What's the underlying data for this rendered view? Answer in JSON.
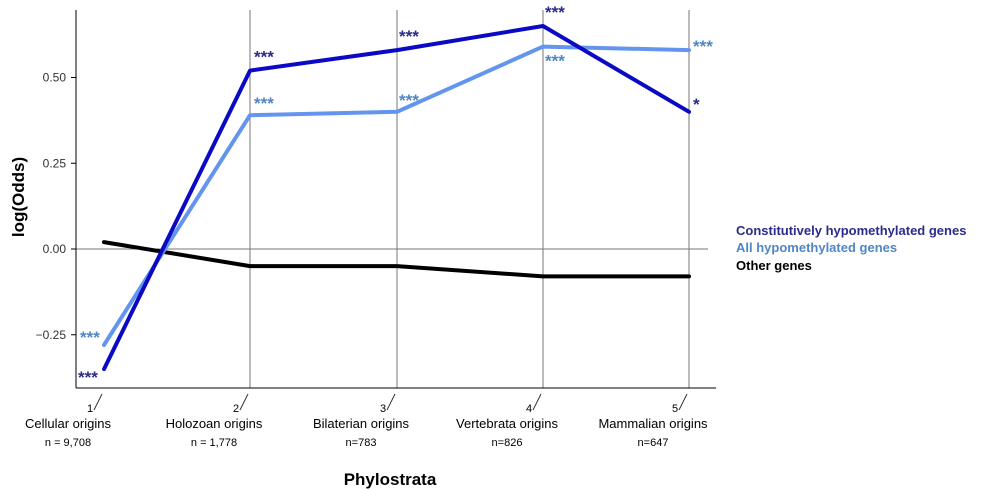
{
  "chart_data": {
    "type": "line",
    "ylabel": "log(Odds)",
    "xlabel": "Phylostrata",
    "ylim": [
      -0.4,
      0.7
    ],
    "yticks": [
      -0.25,
      0,
      0.25,
      0.5
    ],
    "ytick_labels": [
      "−0.25",
      "0.00",
      "0.25",
      "0.50"
    ],
    "categories": [
      {
        "num": "1",
        "label": "Cellular origins",
        "n": "n = 9,708"
      },
      {
        "num": "2",
        "label": "Holozoan origins",
        "n": "n = 1,778"
      },
      {
        "num": "3",
        "label": "Bilaterian origins",
        "n": "n=783"
      },
      {
        "num": "4",
        "label": "Vertebrata origins",
        "n": "n=826"
      },
      {
        "num": "5",
        "label": "Mammalian origins",
        "n": "n=647"
      }
    ],
    "series": [
      {
        "name": "Constitutively hypomethylated genes",
        "color": "#0a0ac4",
        "label_color": "#2b2b8c",
        "values": [
          -0.35,
          0.52,
          0.58,
          0.65,
          0.4
        ],
        "significance": [
          "***",
          "***",
          "***",
          "***",
          "*"
        ]
      },
      {
        "name": "All hypomethylated genes",
        "color": "#6495ed",
        "label_color": "#4f86c6",
        "values": [
          -0.28,
          0.39,
          0.4,
          0.59,
          0.58
        ],
        "significance": [
          "***",
          "***",
          "***",
          "***",
          "***"
        ]
      },
      {
        "name": "Other genes",
        "color": "#000000",
        "label_color": "#000000",
        "values": [
          0.02,
          -0.05,
          -0.05,
          -0.08,
          -0.08
        ],
        "significance": []
      }
    ],
    "legend_position": "right",
    "grid": "vertical lines at categories and a horizontal line at zero"
  }
}
